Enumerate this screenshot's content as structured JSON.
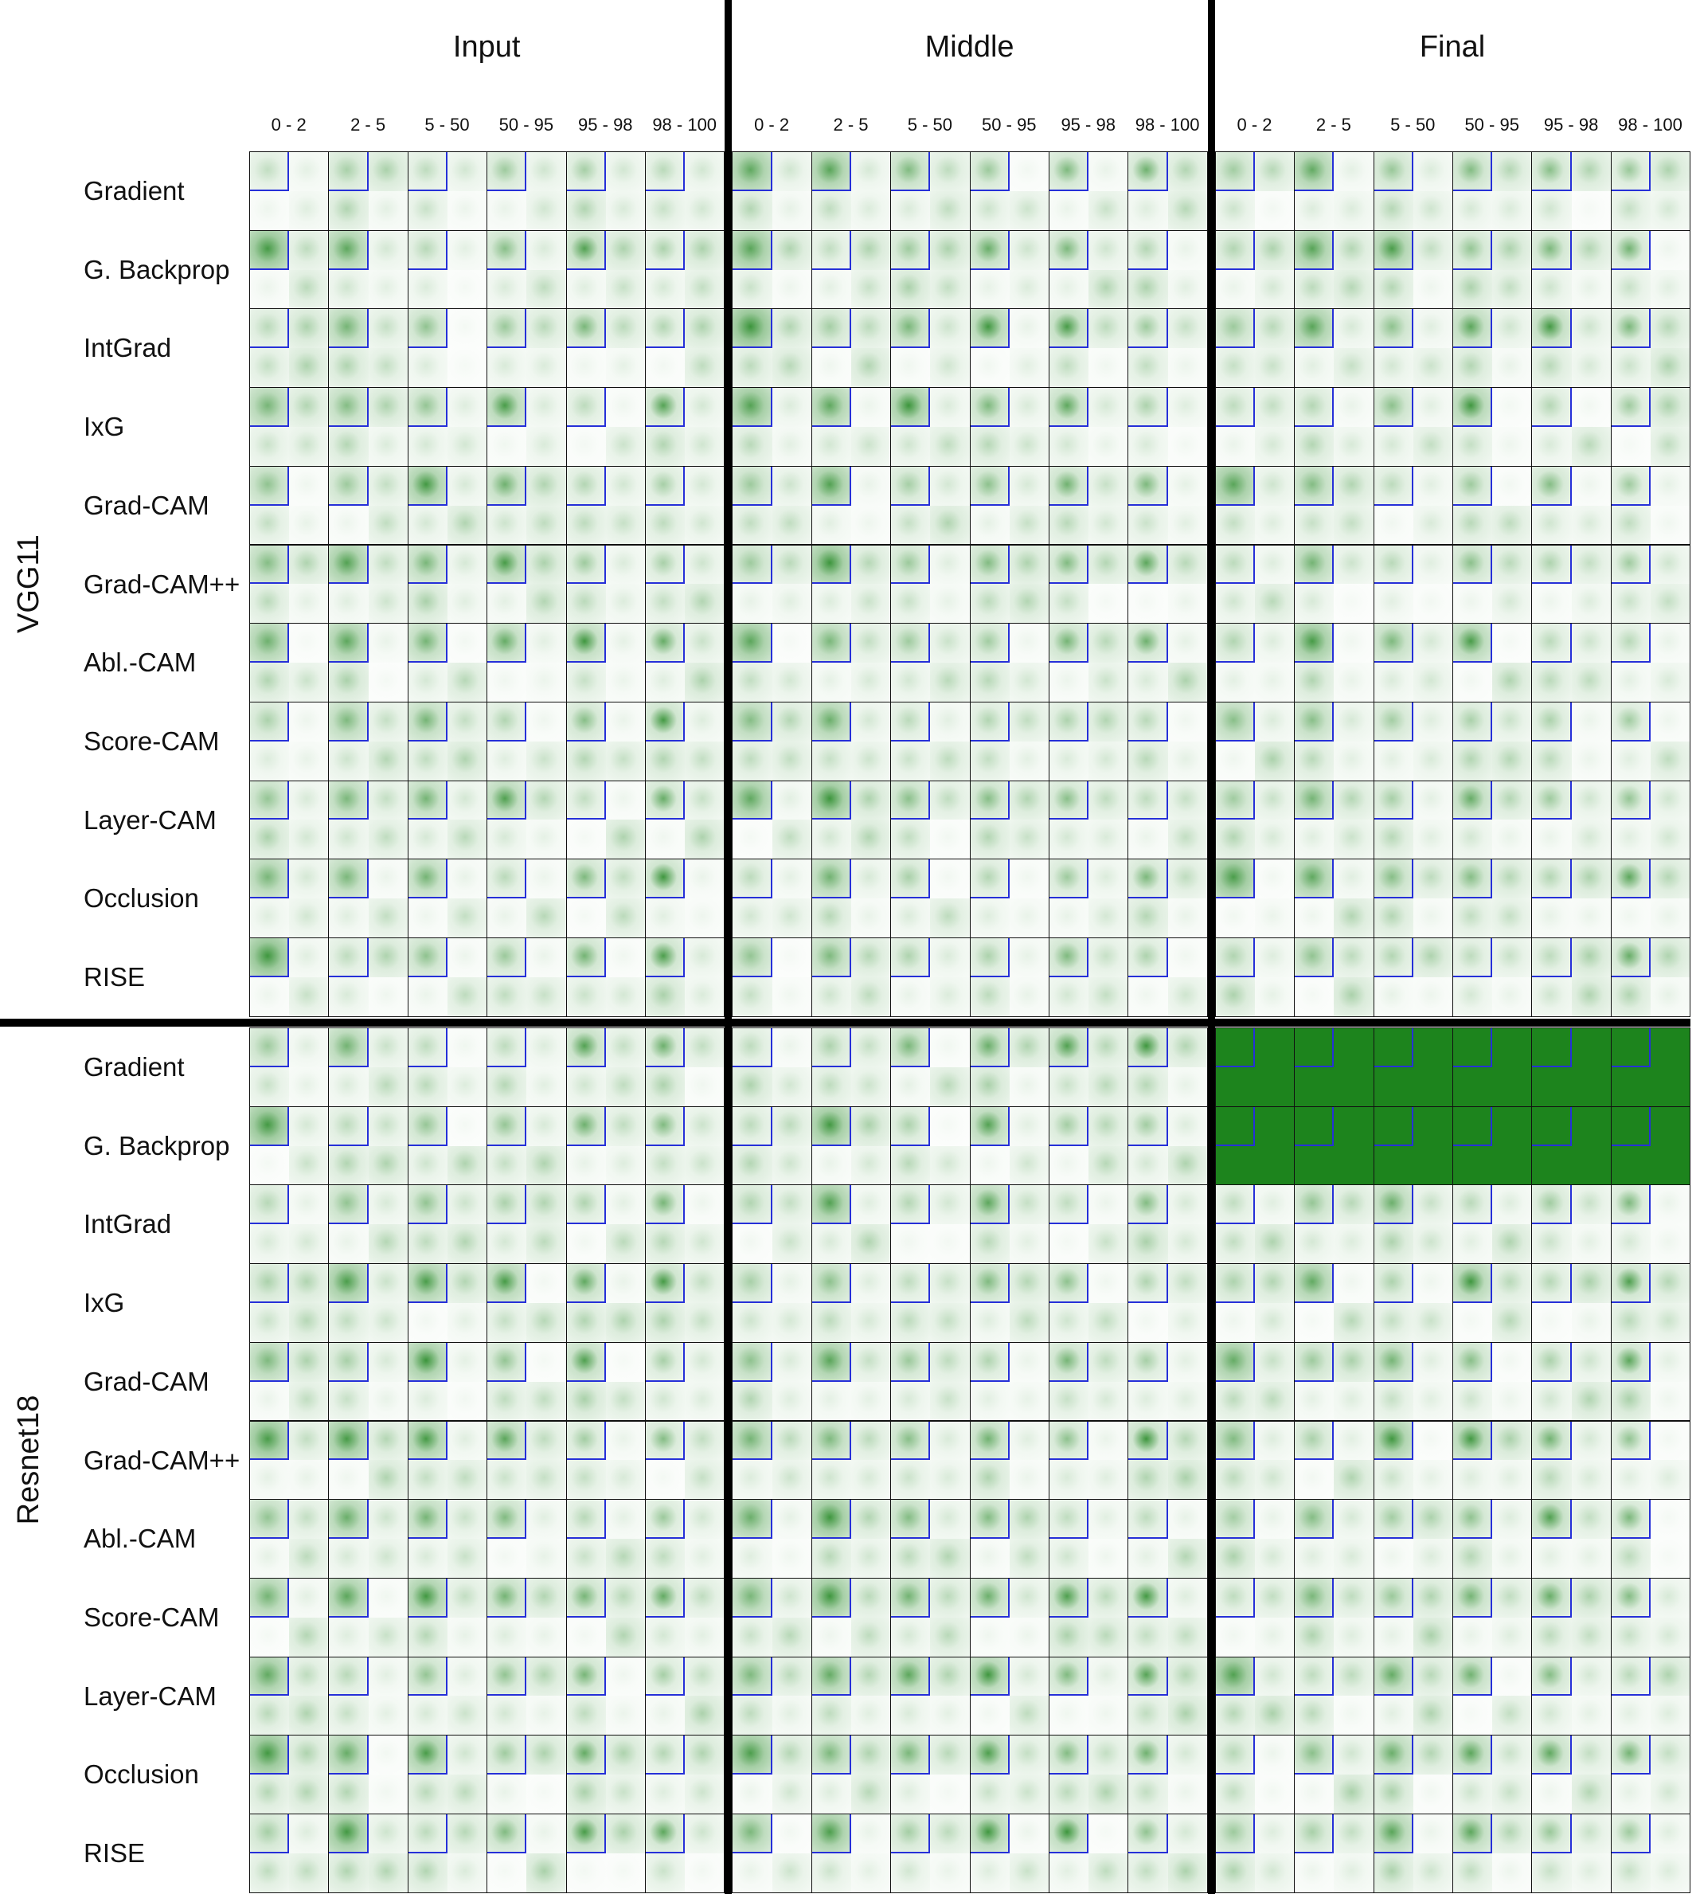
{
  "stages": [
    "Input",
    "Middle",
    "Final"
  ],
  "percentile_bins": [
    "0 - 2",
    "2 - 5",
    "5 - 50",
    "50 - 95",
    "95 - 98",
    "98 - 100"
  ],
  "models": [
    {
      "name": "VGG11",
      "methods": [
        "Gradient",
        "G. Backprop",
        "IntGrad",
        "IxG",
        "Grad-CAM",
        "Grad-CAM++",
        "Abl.-CAM",
        "Score-CAM",
        "Layer-CAM",
        "Occlusion",
        "RISE"
      ]
    },
    {
      "name": "Resnet18",
      "methods": [
        "Gradient",
        "G. Backprop",
        "IntGrad",
        "IxG",
        "Grad-CAM",
        "Grad-CAM++",
        "Abl.-CAM",
        "Score-CAM",
        "Layer-CAM",
        "Occlusion",
        "RISE"
      ]
    }
  ],
  "colors": {
    "attribution": "#0a7a0a",
    "roi_box": "#2630d8",
    "grid": "#111111",
    "separator": "#000000"
  }
}
